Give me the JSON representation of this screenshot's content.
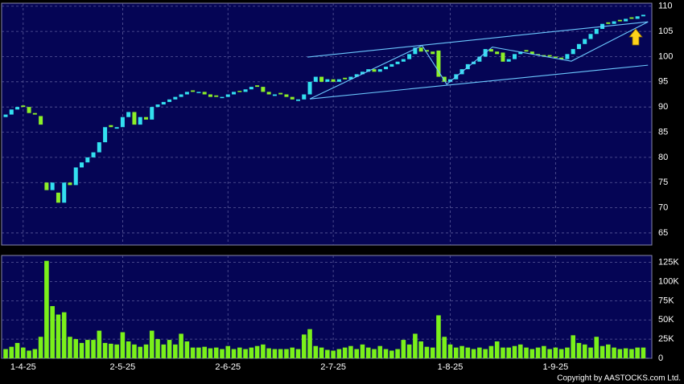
{
  "chart_data": {
    "type": "candlestick",
    "categories": [
      null,
      null,
      null,
      "1-4-25",
      null,
      null,
      null,
      null,
      null,
      null,
      null,
      null,
      null,
      null,
      null,
      null,
      null,
      null,
      null,
      null,
      "2-5-25",
      null,
      null,
      null,
      null,
      null,
      null,
      null,
      null,
      null,
      null,
      null,
      null,
      null,
      null,
      null,
      null,
      null,
      "2-6-25",
      null,
      null,
      null,
      null,
      null,
      null,
      null,
      null,
      null,
      null,
      null,
      null,
      null,
      null,
      null,
      null,
      null,
      "2-7-25",
      null,
      null,
      null,
      null,
      null,
      null,
      null,
      null,
      null,
      null,
      null,
      null,
      null,
      null,
      null,
      null,
      null,
      null,
      null,
      "1-8-25",
      null,
      null,
      null,
      null,
      null,
      null,
      null,
      null,
      null,
      null,
      null,
      null,
      null,
      null,
      null,
      null,
      null,
      "1-9-25",
      null,
      null,
      null,
      null,
      null,
      null,
      null,
      null,
      null,
      null,
      null,
      null,
      null,
      null,
      null
    ],
    "open": [
      88,
      88.5,
      89.5,
      90.3,
      90,
      88.8,
      88.2,
      75,
      73.5,
      73,
      71,
      75,
      74.5,
      78,
      79,
      80,
      81,
      83,
      86.4,
      85.7,
      86,
      88,
      89,
      86.5,
      88,
      87.5,
      90,
      90.5,
      91,
      91.5,
      92,
      92.5,
      93.3,
      92.8,
      93,
      92.5,
      92.3,
      91.8,
      92,
      92.5,
      93.2,
      93,
      93.5,
      94.3,
      94,
      93,
      92.2,
      92.8,
      92.5,
      92,
      91.2,
      91.5,
      92.5,
      95,
      96,
      95,
      95.5,
      95,
      95.8,
      95.5,
      96,
      96.5,
      97,
      97.5,
      97,
      97.5,
      98,
      98.5,
      99,
      99.5,
      100.5,
      101.8,
      101.3,
      101,
      101.2,
      96,
      95,
      95.5,
      96.5,
      97.5,
      98.5,
      99,
      100,
      101.5,
      101,
      100.8,
      99,
      99.5,
      100.5,
      101.3,
      101,
      100.5,
      100.3,
      100.3,
      100,
      99.8,
      99.5,
      100.5,
      101.5,
      102.5,
      103.5,
      104.5,
      105.5,
      106.8,
      106.5,
      107.3,
      107,
      107.8,
      107.5,
      108
    ],
    "close": [
      88.5,
      89.5,
      90,
      90,
      88.8,
      88.5,
      86.5,
      73.5,
      75,
      71,
      75,
      74.5,
      78,
      79,
      80,
      81,
      83,
      86,
      86,
      86,
      88,
      89,
      86.5,
      88,
      87.5,
      90,
      90.5,
      91,
      91.5,
      92,
      92.5,
      93,
      93,
      93,
      92.5,
      92,
      92,
      92,
      92.5,
      93,
      93,
      93.5,
      94,
      94,
      93,
      92.5,
      92.5,
      92.5,
      92,
      91.5,
      91.5,
      92.5,
      95,
      96,
      95,
      95.5,
      95,
      95.5,
      95.5,
      96,
      96.5,
      97,
      97.5,
      97,
      97.5,
      98,
      98.5,
      99,
      99.5,
      100.5,
      101.8,
      101,
      101,
      100.5,
      96,
      95,
      95.5,
      96.5,
      97.5,
      98.5,
      99,
      100,
      101.5,
      101,
      100.5,
      99,
      99.5,
      100.5,
      101,
      101,
      100.5,
      100.3,
      100,
      100,
      99.8,
      99.5,
      100.5,
      101.5,
      102.5,
      103.5,
      104.5,
      105.5,
      106.5,
      106.5,
      107,
      107,
      107.5,
      107.5,
      108,
      108.3
    ],
    "up_color": "#33e0f0",
    "down_color": "#8cf028",
    "ylim": [
      62.6,
      110.6
    ],
    "yticks": [
      65,
      70,
      75,
      80,
      85,
      90,
      95,
      100,
      105,
      110
    ],
    "grid": true,
    "trendlines": [
      {
        "x": [
          51.6,
          109.8
        ],
        "y": [
          99.9,
          106.9
        ]
      },
      {
        "x": [
          52,
          109.8
        ],
        "y": [
          91.6,
          98.3
        ]
      },
      {
        "x": [
          52,
          71.2,
          75.4,
          83.2,
          96.7,
          109.8
        ],
        "y": [
          91.6,
          102.2,
          94.5,
          101.9,
          99.1,
          106.9
        ]
      }
    ],
    "trendline_color": "#6cc8ff",
    "volume": {
      "color": "#7af01a",
      "values": [
        12000,
        15000,
        20000,
        14000,
        10000,
        12000,
        28000,
        127000,
        68000,
        57000,
        60000,
        28000,
        25000,
        20000,
        24000,
        24000,
        36000,
        20000,
        19000,
        18000,
        34000,
        22000,
        18000,
        15000,
        18000,
        36000,
        25000,
        18000,
        24000,
        18000,
        32000,
        22000,
        14000,
        14000,
        15000,
        13000,
        14000,
        12000,
        16000,
        12000,
        14000,
        12000,
        14000,
        16000,
        18000,
        13000,
        12000,
        12000,
        12000,
        14000,
        12000,
        31000,
        38000,
        16000,
        14000,
        11000,
        10000,
        12000,
        14000,
        16000,
        12000,
        18000,
        14000,
        12000,
        16000,
        12000,
        10000,
        12000,
        24000,
        18000,
        32000,
        22000,
        15000,
        14000,
        56000,
        28000,
        18000,
        14000,
        16000,
        14000,
        12000,
        14000,
        12000,
        16000,
        22000,
        14000,
        14000,
        16000,
        18000,
        14000,
        12000,
        14000,
        16000,
        12000,
        14000,
        12000,
        14000,
        30000,
        20000,
        18000,
        14000,
        28000,
        16000,
        18000,
        14000,
        12000,
        13000,
        12000,
        14000,
        14000
      ],
      "ylim": [
        0,
        134000
      ],
      "yticks": [
        0,
        {
          "value": 25000,
          "label": "25K"
        },
        {
          "value": 50000,
          "label": "50K"
        },
        {
          "value": 75000,
          "label": "75K"
        },
        {
          "value": 100000,
          "label": "100K"
        },
        {
          "value": 125000,
          "label": "125K"
        }
      ]
    },
    "copyright": "Copyright by AASTOCKS.com Ltd."
  }
}
